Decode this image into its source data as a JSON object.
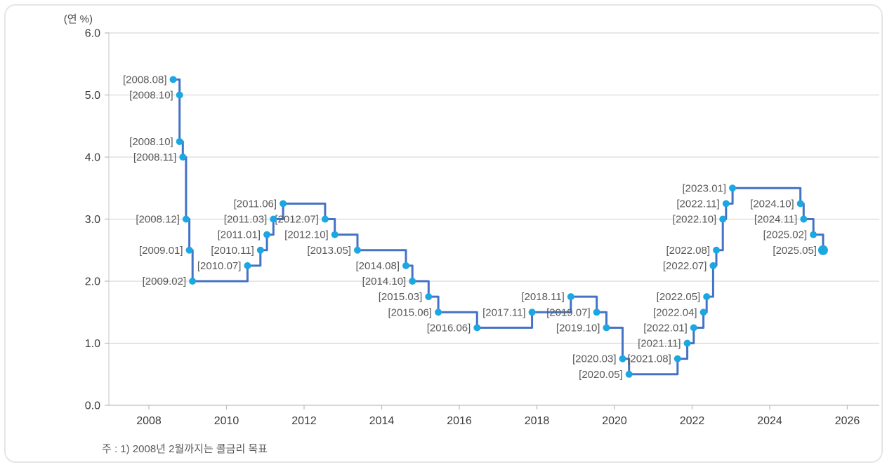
{
  "chart_data": {
    "type": "line",
    "subtype": "step-after",
    "unit_label": "(연 %)",
    "footnote": "주 : 1) 2008년 2월까지는 콜금리 목표",
    "ylim": [
      0.0,
      6.0
    ],
    "y_ticks": [
      0,
      1,
      2,
      3,
      4,
      5,
      6
    ],
    "y_tick_labels": [
      "0.0",
      "1.0",
      "2.0",
      "3.0",
      "4.0",
      "5.0",
      "6.0"
    ],
    "x_ticks": [
      2008,
      2010,
      2012,
      2014,
      2016,
      2018,
      2020,
      2022,
      2024,
      2026
    ],
    "grid": "horizontal",
    "legend": "none",
    "colors": {
      "line": "#4472C4",
      "marker": "#1BA7E2",
      "grid": "#D9D9D9",
      "axis": "#BFBFBF",
      "axis_line": "#D2D2D2",
      "data_label": "#595959",
      "axis_label": "#3C3C3C"
    },
    "points": [
      {
        "label": "[2008.08]",
        "year": 2008,
        "month": 8,
        "rate": 5.25
      },
      {
        "label": "[2008.10]",
        "year": 2008,
        "month": 10,
        "rate": 5.0
      },
      {
        "label": "[2008.10]",
        "year": 2008,
        "month": 10,
        "rate": 4.25
      },
      {
        "label": "[2008.11]",
        "year": 2008,
        "month": 11,
        "rate": 4.0
      },
      {
        "label": "[2008.12]",
        "year": 2008,
        "month": 12,
        "rate": 3.0
      },
      {
        "label": "[2009.01]",
        "year": 2009,
        "month": 1,
        "rate": 2.5
      },
      {
        "label": "[2009.02]",
        "year": 2009,
        "month": 2,
        "rate": 2.0
      },
      {
        "label": "[2010.07]",
        "year": 2010,
        "month": 7,
        "rate": 2.25
      },
      {
        "label": "[2010.11]",
        "year": 2010,
        "month": 11,
        "rate": 2.5
      },
      {
        "label": "[2011.01]",
        "year": 2011,
        "month": 1,
        "rate": 2.75
      },
      {
        "label": "[2011.03]",
        "year": 2011,
        "month": 3,
        "rate": 3.0
      },
      {
        "label": "[2011.06]",
        "year": 2011,
        "month": 6,
        "rate": 3.25
      },
      {
        "label": "[2012.07]",
        "year": 2012,
        "month": 7,
        "rate": 3.0
      },
      {
        "label": "[2012.10]",
        "year": 2012,
        "month": 10,
        "rate": 2.75
      },
      {
        "label": "[2013.05]",
        "year": 2013,
        "month": 5,
        "rate": 2.5
      },
      {
        "label": "[2014.08]",
        "year": 2014,
        "month": 8,
        "rate": 2.25
      },
      {
        "label": "[2014.10]",
        "year": 2014,
        "month": 10,
        "rate": 2.0
      },
      {
        "label": "[2015.03]",
        "year": 2015,
        "month": 3,
        "rate": 1.75
      },
      {
        "label": "[2015.06]",
        "year": 2015,
        "month": 6,
        "rate": 1.5
      },
      {
        "label": "[2016.06]",
        "year": 2016,
        "month": 6,
        "rate": 1.25
      },
      {
        "label": "[2017.11]",
        "year": 2017,
        "month": 11,
        "rate": 1.5
      },
      {
        "label": "[2018.11]",
        "year": 2018,
        "month": 11,
        "rate": 1.75
      },
      {
        "label": "[2019.07]",
        "year": 2019,
        "month": 7,
        "rate": 1.5
      },
      {
        "label": "[2019.10]",
        "year": 2019,
        "month": 10,
        "rate": 1.25
      },
      {
        "label": "[2020.03]",
        "year": 2020,
        "month": 3,
        "rate": 0.75
      },
      {
        "label": "[2020.05]",
        "year": 2020,
        "month": 5,
        "rate": 0.5
      },
      {
        "label": "[2021.08]",
        "year": 2021,
        "month": 8,
        "rate": 0.75
      },
      {
        "label": "[2021.11]",
        "year": 2021,
        "month": 11,
        "rate": 1.0
      },
      {
        "label": "[2022.01]",
        "year": 2022,
        "month": 1,
        "rate": 1.25
      },
      {
        "label": "[2022.04]",
        "year": 2022,
        "month": 4,
        "rate": 1.5
      },
      {
        "label": "[2022.05]",
        "year": 2022,
        "month": 5,
        "rate": 1.75
      },
      {
        "label": "[2022.07]",
        "year": 2022,
        "month": 7,
        "rate": 2.25
      },
      {
        "label": "[2022.08]",
        "year": 2022,
        "month": 8,
        "rate": 2.5
      },
      {
        "label": "[2022.10]",
        "year": 2022,
        "month": 10,
        "rate": 3.0
      },
      {
        "label": "[2022.11]",
        "year": 2022,
        "month": 11,
        "rate": 3.25
      },
      {
        "label": "[2023.01]",
        "year": 2023,
        "month": 1,
        "rate": 3.5
      },
      {
        "label": "[2024.10]",
        "year": 2024,
        "month": 10,
        "rate": 3.25
      },
      {
        "label": "[2024.11]",
        "year": 2024,
        "month": 11,
        "rate": 3.0
      },
      {
        "label": "[2025.02]",
        "year": 2025,
        "month": 2,
        "rate": 2.75
      },
      {
        "label": "[2025.05]",
        "year": 2025,
        "month": 5,
        "rate": 2.5
      }
    ]
  }
}
